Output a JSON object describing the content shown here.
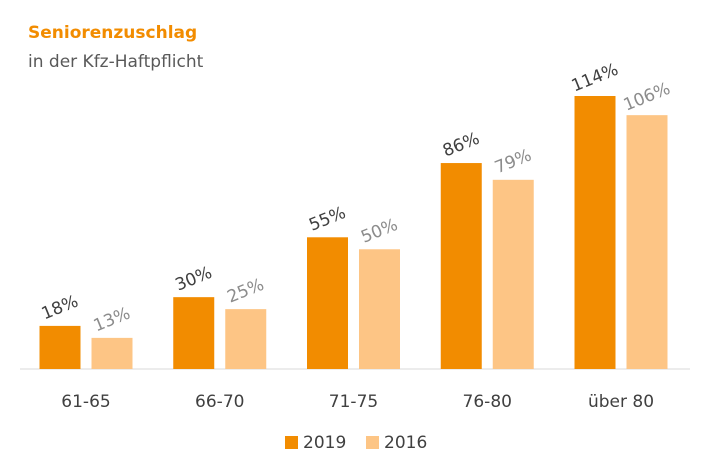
{
  "chart_data": {
    "type": "bar",
    "title": "Seniorenzuschlag",
    "subtitle": "in der Kfz-Haftpflicht",
    "categories": [
      "61-65",
      "66-70",
      "71-75",
      "76-80",
      "über 80"
    ],
    "series": [
      {
        "name": "2019",
        "color": "#f28c00",
        "label_color": "#404040",
        "values": [
          18,
          30,
          55,
          86,
          114
        ],
        "value_labels": [
          "18%",
          "30%",
          "55%",
          "86%",
          "114%"
        ]
      },
      {
        "name": "2016",
        "color": "#fdc585",
        "label_color": "#8c8c8c",
        "values": [
          13,
          25,
          50,
          79,
          106
        ],
        "value_labels": [
          "13%",
          "25%",
          "50%",
          "79%",
          "106%"
        ]
      }
    ],
    "grid": false,
    "legend": "bottom"
  }
}
